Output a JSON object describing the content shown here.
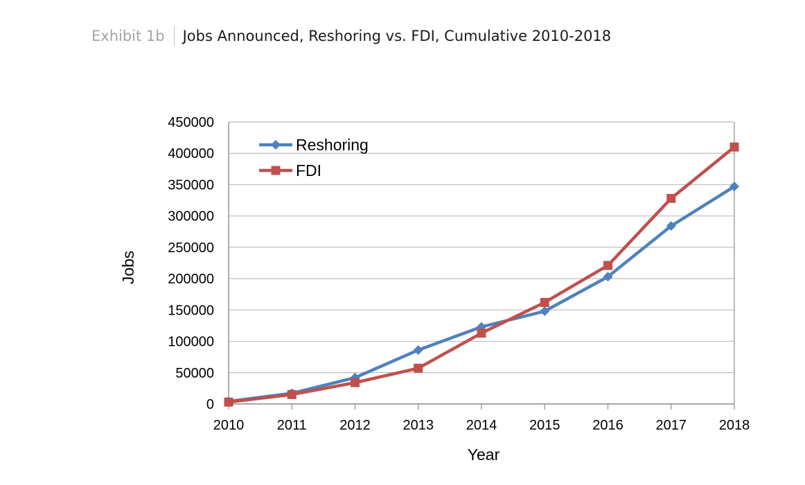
{
  "header": {
    "exhibit": "Exhibit 1b",
    "title": "Jobs Announced, Reshoring vs. FDI, Cumulative 2010-2018"
  },
  "chart_data": {
    "type": "line",
    "title": "Jobs Announced, Reshoring vs. FDI, Cumulative 2010-2018",
    "xlabel": "Year",
    "ylabel": "Jobs",
    "x": [
      2010,
      2011,
      2012,
      2013,
      2014,
      2015,
      2016,
      2017,
      2018
    ],
    "ylim": [
      0,
      450000
    ],
    "yticks": [
      0,
      50000,
      100000,
      150000,
      200000,
      250000,
      300000,
      350000,
      400000,
      450000
    ],
    "grid": true,
    "legend_position": "top-left",
    "series": [
      {
        "name": "Reshoring",
        "color": "#4f81bd",
        "marker": "diamond",
        "values": [
          4000,
          17000,
          42000,
          86000,
          123000,
          148000,
          203000,
          284000,
          347000
        ]
      },
      {
        "name": "FDI",
        "color": "#c0504d",
        "marker": "square",
        "values": [
          3000,
          15000,
          34000,
          57000,
          113000,
          162000,
          221000,
          328000,
          410000
        ]
      }
    ]
  }
}
